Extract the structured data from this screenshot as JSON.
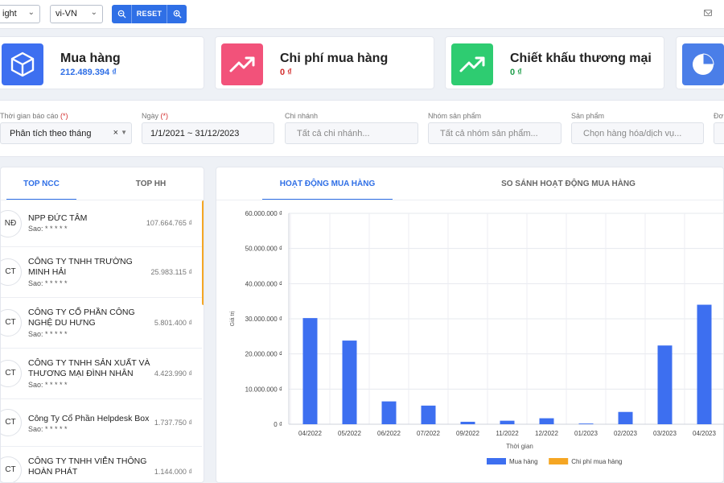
{
  "toolbar": {
    "theme_value": "ight",
    "locale_value": "vi-VN",
    "reset_label": "RESET"
  },
  "cards": [
    {
      "title": "Mua hàng",
      "value": "212.489.394 ₫",
      "color": "#2f6fe6",
      "value_color": "#2f6fe6"
    },
    {
      "title": "Chi phí mua hàng",
      "value": "0 ₫",
      "color": "#f2527a",
      "value_color": "#d32f2f"
    },
    {
      "title": "Chiết khấu thương mại",
      "value": "0 ₫",
      "color": "#2ecc71",
      "value_color": "#1e9e4a"
    },
    {
      "title": "",
      "value": "",
      "color": "#4a7ee8",
      "value_color": "#2f6fe6"
    }
  ],
  "filters": {
    "report_time": {
      "label": "Thời gian báo cáo",
      "required": "(*)",
      "value": "Phân tích theo tháng",
      "clear": "×"
    },
    "date": {
      "label": "Ngày",
      "required": "(*)",
      "value": "1/1/2021 ~ 31/12/2023"
    },
    "branch": {
      "label": "Chi nhánh",
      "placeholder": "Tất cả chi nhánh..."
    },
    "product_group": {
      "label": "Nhóm sản phẩm",
      "placeholder": "Tất cả nhóm sản phẩm..."
    },
    "product": {
      "label": "Sản phẩm",
      "placeholder": "Chọn hàng hóa/dịch vụ..."
    },
    "unit": {
      "label": "Đơ"
    }
  },
  "left_tabs": [
    "TOP NCC",
    "TOP HH"
  ],
  "suppliers": [
    {
      "initials": "NĐ",
      "name": "NPP ĐỨC TÂM",
      "stars": "Sao: * * * * *",
      "amount": "107.664.765 ₫"
    },
    {
      "initials": "CT",
      "name": "CÔNG TY TNHH TRƯỜNG MINH HẢI",
      "stars": "Sao: * * * * *",
      "amount": "25.983.115 ₫"
    },
    {
      "initials": "CT",
      "name": "CÔNG TY CỔ PHẦN CÔNG NGHỆ DU HƯNG",
      "stars": "Sao: * * * * *",
      "amount": "5.801.400 ₫"
    },
    {
      "initials": "CT",
      "name": "CÔNG TY TNHH SẢN XUẤT VÀ THƯƠNG MẠI ĐÌNH NHÂN",
      "stars": "Sao: * * * * *",
      "amount": "4.423.990 ₫"
    },
    {
      "initials": "CT",
      "name": "Công Ty Cổ Phần Helpdesk Box",
      "stars": "Sao: * * * * *",
      "amount": "1.737.750 ₫"
    },
    {
      "initials": "CT",
      "name": "CÔNG TY TNHH VIỄN THÔNG HOÀN PHÁT",
      "stars": "",
      "amount": "1.144.000 ₫"
    }
  ],
  "right_tabs": [
    "HOẠT ĐỘNG MUA HÀNG",
    "SO SÁNH HOẠT ĐỘNG MUA HÀNG"
  ],
  "chart_data": {
    "type": "bar",
    "categories": [
      "04/2022",
      "05/2022",
      "06/2022",
      "07/2022",
      "09/2022",
      "11/2022",
      "12/2022",
      "01/2023",
      "02/2023",
      "03/2023",
      "04/2023"
    ],
    "series": [
      {
        "name": "Mua hàng",
        "color": "#3d6ff0",
        "values": [
          30200000,
          23800000,
          6500000,
          5300000,
          700000,
          1000000,
          1700000,
          200000,
          3500000,
          22400000,
          34000000
        ]
      },
      {
        "name": "Chi phí mua hàng",
        "color": "#f5a623",
        "values": [
          0,
          0,
          0,
          0,
          0,
          0,
          0,
          0,
          0,
          0,
          0
        ]
      }
    ],
    "ylim": [
      0,
      60000000
    ],
    "yticks": [
      {
        "value": 0,
        "label": "0 ₫"
      },
      {
        "value": 10000000,
        "label": "10.000.000 ₫"
      },
      {
        "value": 20000000,
        "label": "20.000.000 ₫"
      },
      {
        "value": 30000000,
        "label": "30.000.000 ₫"
      },
      {
        "value": 40000000,
        "label": "40.000.000 ₫"
      },
      {
        "value": 50000000,
        "label": "50.000.000 ₫"
      },
      {
        "value": 60000000,
        "label": "60.000.000 ₫"
      }
    ],
    "xlabel": "Thời gian",
    "ylabel": "Giá trị",
    "grid": true,
    "legend": "bottom"
  }
}
